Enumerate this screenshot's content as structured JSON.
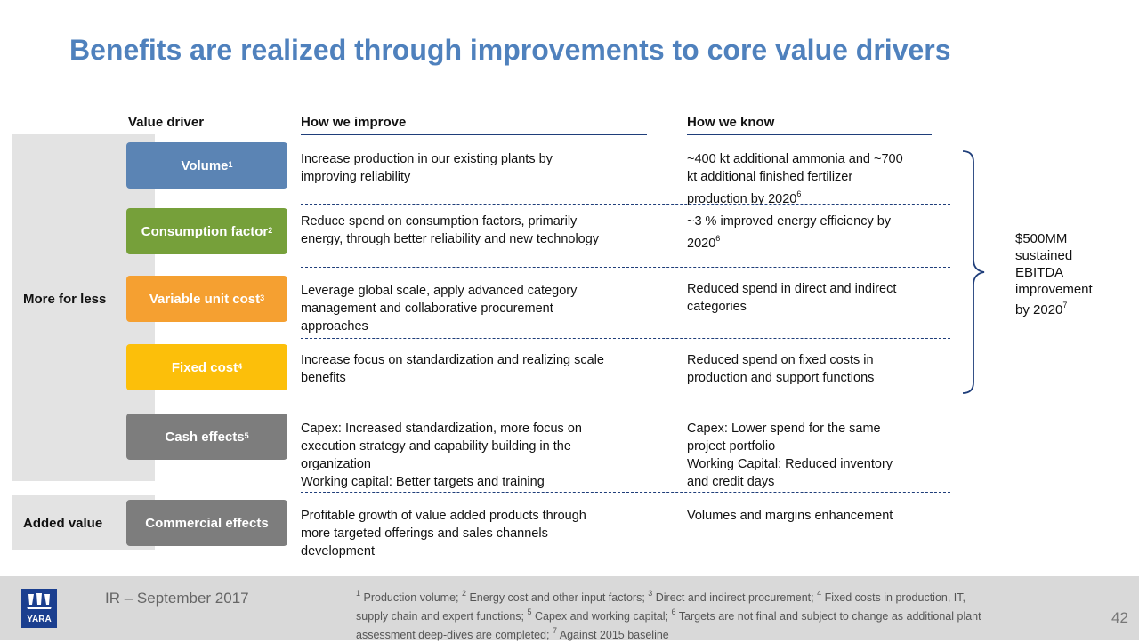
{
  "title": "Benefits are realized through improvements to core value drivers",
  "columns": {
    "value_driver": "Value driver",
    "how_improve": "How we improve",
    "how_know": "How we know"
  },
  "groups": {
    "more_for_less": "More for less",
    "added_value": "Added value"
  },
  "rows": [
    {
      "driver": "Volume",
      "sup": "1",
      "color": "#5b84b4",
      "improve": [
        "Increase production in our existing plants by",
        "improving reliability"
      ],
      "know": [
        "~400 kt additional ammonia and ~700",
        "kt additional finished fertilizer",
        "production by 2020"
      ],
      "know_sup": "6"
    },
    {
      "driver": "Consumption factor",
      "sup": "2",
      "color": "#76a03a",
      "improve": [
        "Reduce spend on consumption factors, primarily",
        "energy, through better reliability and new technology"
      ],
      "know": [
        "~3 % improved energy efficiency by",
        "2020"
      ],
      "know_sup": "6"
    },
    {
      "driver": "Variable unit cost",
      "sup": "3",
      "color": "#f5a031",
      "improve": [
        "Leverage global scale, apply advanced category",
        "management and collaborative procurement",
        "approaches"
      ],
      "know": [
        "Reduced spend in direct and indirect",
        "categories"
      ],
      "know_sup": ""
    },
    {
      "driver": "Fixed cost",
      "sup": "4",
      "color": "#fcbf0a",
      "improve": [
        "Increase focus on standardization and realizing scale",
        "benefits"
      ],
      "know": [
        "Reduced spend on fixed costs in",
        "production and support functions"
      ],
      "know_sup": ""
    },
    {
      "driver": "Cash effects",
      "sup": "5",
      "color": "#7d7d7d",
      "improve": [
        "Capex: Increased standardization, more focus on",
        "execution strategy and capability building in the",
        "organization",
        "Working capital: Better targets and training"
      ],
      "know": [
        "Capex: Lower spend for the same",
        "project portfolio",
        "Working Capital: Reduced inventory",
        "and credit days"
      ],
      "know_sup": ""
    },
    {
      "driver": "Commercial effects",
      "sup": "",
      "color": "#7d7d7d",
      "improve": [
        "Profitable growth of value added products through",
        "more targeted offerings and sales channels",
        "development"
      ],
      "know": [
        "Volumes and margins enhancement"
      ],
      "know_sup": ""
    }
  ],
  "ebitda": {
    "lines": [
      "$500MM",
      "sustained",
      "EBITDA",
      "improvement",
      "by 2020"
    ],
    "sup": "7"
  },
  "footer": {
    "ir": "IR – September 2017",
    "footnote_lines": [
      [
        {
          "s": "1"
        },
        {
          "t": " Production volume; "
        },
        {
          "s": "2"
        },
        {
          "t": " Energy cost and other input factors; "
        },
        {
          "s": "3"
        },
        {
          "t": " Direct and indirect procurement; "
        },
        {
          "s": "4"
        },
        {
          "t": " Fixed costs in production, IT,"
        }
      ],
      [
        {
          "t": "supply chain and expert functions; "
        },
        {
          "s": "5"
        },
        {
          "t": " Capex and working capital; "
        },
        {
          "s": "6"
        },
        {
          "t": " Targets are not final and subject to change as additional plant"
        }
      ],
      [
        {
          "t": "assessment deep-dives are completed; "
        },
        {
          "s": "7"
        },
        {
          "t": " Against 2015 baseline"
        }
      ]
    ],
    "page": "42",
    "logo_text": "YARA"
  },
  "colors": {
    "title": "#4f81bd",
    "lines": "#1f3e7a",
    "footer_bg": "#d9d9d9",
    "logo": "#1b3f8f"
  }
}
